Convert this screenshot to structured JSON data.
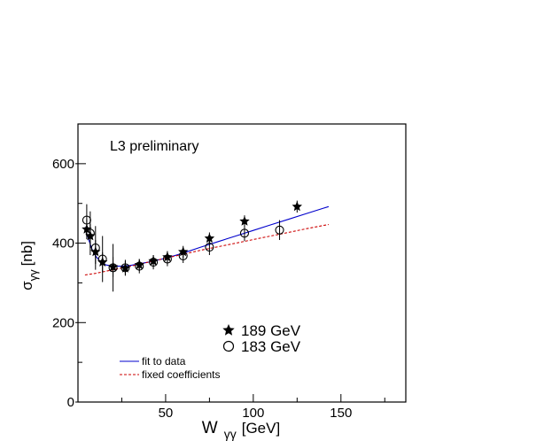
{
  "chart_data": {
    "type": "scatter",
    "title": "",
    "annotation": "L3 preliminary",
    "xlabel_main": "W",
    "xlabel_sub": "γγ",
    "xlabel_unit": "[GeV]",
    "ylabel_main": "σ",
    "ylabel_sub": "γγ",
    "ylabel_unit": "[nb]",
    "xlim": [
      0,
      187
    ],
    "ylim": [
      0,
      700
    ],
    "x_ticks": [
      {
        "value": 50,
        "label": "50"
      },
      {
        "value": 100,
        "label": "100"
      },
      {
        "value": 150,
        "label": "150"
      }
    ],
    "y_ticks": [
      {
        "value": 0,
        "label": "0"
      },
      {
        "value": 200,
        "label": "200"
      },
      {
        "value": 400,
        "label": "400"
      },
      {
        "value": 600,
        "label": "600"
      }
    ],
    "grid": false,
    "series": [
      {
        "name": "189 GeV",
        "marker": "star",
        "points": [
          {
            "x": 5,
            "y": 435,
            "err": 25
          },
          {
            "x": 7,
            "y": 418,
            "err": 30
          },
          {
            "x": 10,
            "y": 378,
            "err": 30
          },
          {
            "x": 14,
            "y": 352,
            "err": 25
          },
          {
            "x": 20,
            "y": 340,
            "err": 25
          },
          {
            "x": 27,
            "y": 337,
            "err": 18
          },
          {
            "x": 35,
            "y": 345,
            "err": 15
          },
          {
            "x": 43,
            "y": 355,
            "err": 15
          },
          {
            "x": 51,
            "y": 365,
            "err": 15
          },
          {
            "x": 60,
            "y": 378,
            "err": 15
          },
          {
            "x": 75,
            "y": 412,
            "err": 15
          },
          {
            "x": 95,
            "y": 455,
            "err": 15
          },
          {
            "x": 125,
            "y": 492,
            "err": 15
          }
        ]
      },
      {
        "name": "183 GeV",
        "marker": "circle",
        "points": [
          {
            "x": 5,
            "y": 458,
            "err": 40
          },
          {
            "x": 7,
            "y": 425,
            "err": 55
          },
          {
            "x": 10,
            "y": 388,
            "err": 55
          },
          {
            "x": 14,
            "y": 360,
            "err": 58
          },
          {
            "x": 20,
            "y": 338,
            "err": 60
          },
          {
            "x": 27,
            "y": 338,
            "err": 20
          },
          {
            "x": 35,
            "y": 342,
            "err": 18
          },
          {
            "x": 43,
            "y": 352,
            "err": 18
          },
          {
            "x": 51,
            "y": 360,
            "err": 18
          },
          {
            "x": 60,
            "y": 368,
            "err": 18
          },
          {
            "x": 75,
            "y": 390,
            "err": 20
          },
          {
            "x": 95,
            "y": 425,
            "err": 20
          },
          {
            "x": 115,
            "y": 433,
            "err": 25
          }
        ]
      }
    ],
    "curves": [
      {
        "name": "fit to data",
        "color": "#0000cc",
        "style": "solid",
        "points": [
          [
            4,
            440
          ],
          [
            6,
            410
          ],
          [
            8,
            385
          ],
          [
            10,
            368
          ],
          [
            13,
            352
          ],
          [
            16,
            345
          ],
          [
            20,
            342
          ],
          [
            25,
            342
          ],
          [
            30,
            344
          ],
          [
            40,
            352
          ],
          [
            50,
            362
          ],
          [
            60,
            375
          ],
          [
            70,
            390
          ],
          [
            80,
            404
          ],
          [
            90,
            418
          ],
          [
            100,
            432
          ],
          [
            110,
            446
          ],
          [
            120,
            460
          ],
          [
            130,
            474
          ],
          [
            140,
            488
          ],
          [
            143,
            492
          ]
        ]
      },
      {
        "name": "fixed coefficients",
        "color": "#cc0000",
        "style": "dashed",
        "points": [
          [
            4,
            320
          ],
          [
            10,
            324
          ],
          [
            20,
            333
          ],
          [
            30,
            342
          ],
          [
            40,
            352
          ],
          [
            50,
            362
          ],
          [
            60,
            372
          ],
          [
            70,
            382
          ],
          [
            80,
            391
          ],
          [
            90,
            400
          ],
          [
            100,
            409
          ],
          [
            110,
            418
          ],
          [
            120,
            427
          ],
          [
            130,
            436
          ],
          [
            143,
            447
          ]
        ]
      }
    ],
    "legend_markers": [
      "189 GeV",
      "183 GeV"
    ],
    "legend_lines": [
      "fit to data",
      "fixed coefficients"
    ]
  }
}
